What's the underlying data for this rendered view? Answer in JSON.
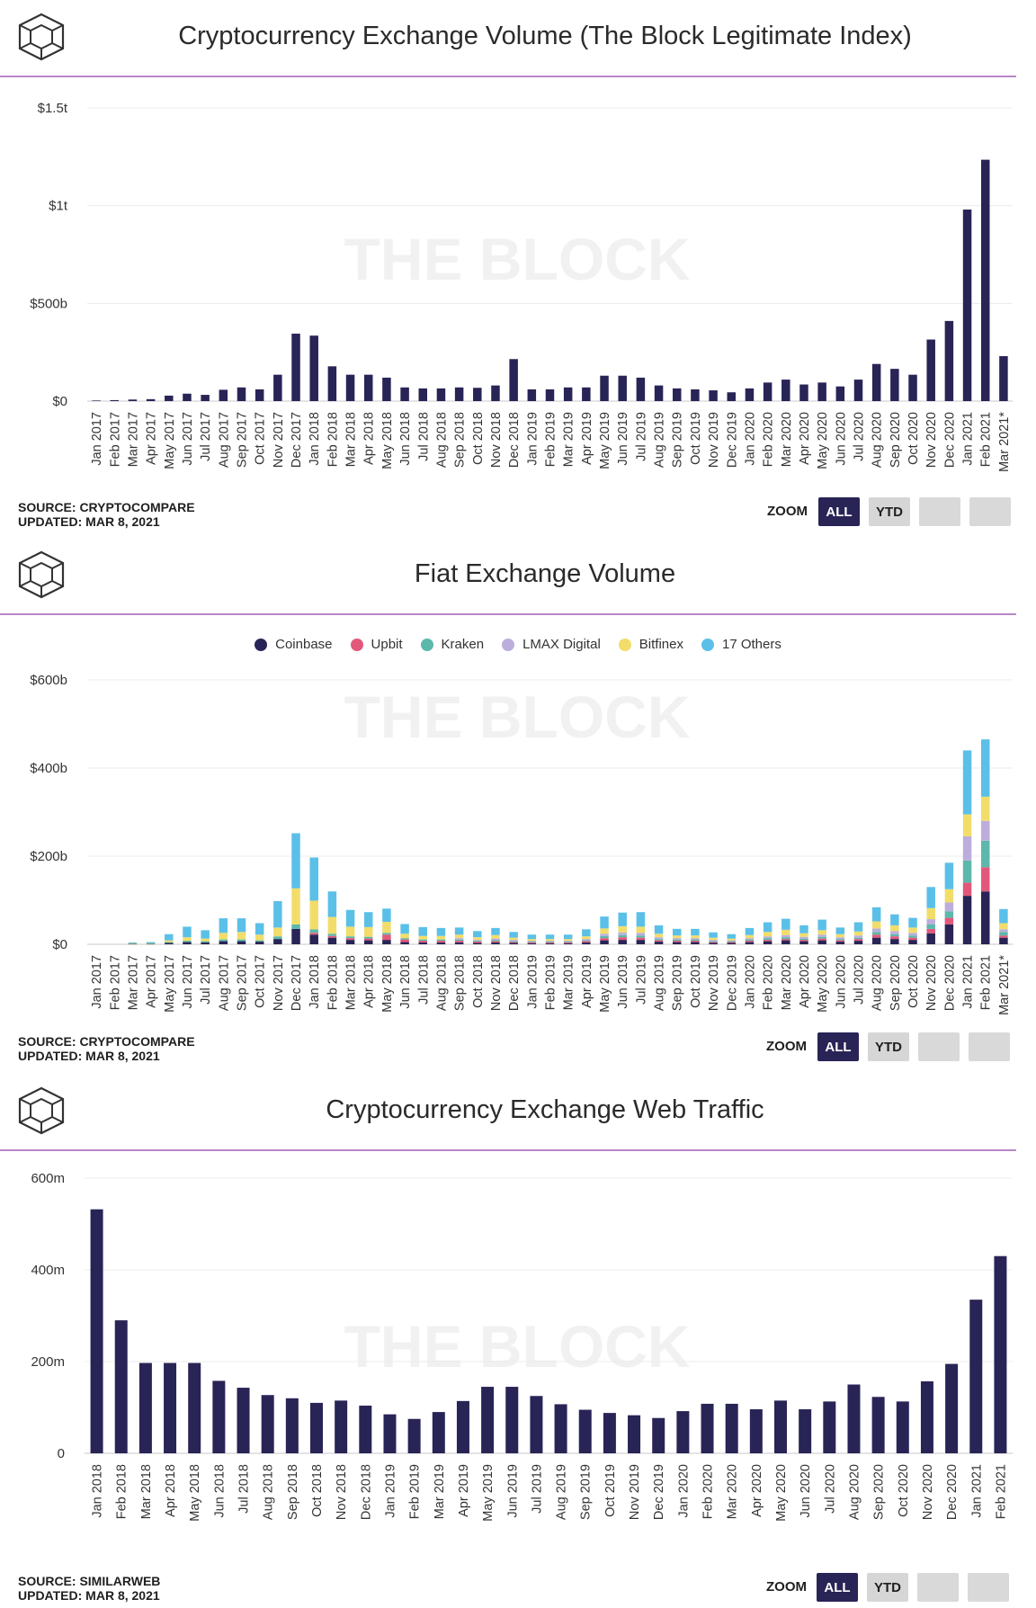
{
  "charts": [
    {
      "title": "Cryptocurrency Exchange Volume (The Block Legitimate Index)",
      "source": "SOURCE: CRYPTOCOMPARE",
      "updated": "UPDATED: MAR 8, 2021",
      "watermark": "THE BLOCK",
      "zoom_label": "ZOOM",
      "buttons": {
        "all": "ALL",
        "ytd": "YTD"
      }
    },
    {
      "title": "Fiat Exchange Volume",
      "source": "SOURCE: CRYPTOCOMPARE",
      "updated": "UPDATED: MAR 8, 2021",
      "watermark": "THE BLOCK",
      "zoom_label": "ZOOM",
      "buttons": {
        "all": "ALL",
        "ytd": "YTD"
      },
      "legend": [
        "Coinbase",
        "Upbit",
        "Kraken",
        "LMAX Digital",
        "Bitfinex",
        "17 Others"
      ]
    },
    {
      "title": "Cryptocurrency Exchange Web Traffic",
      "source": "SOURCE: SIMILARWEB",
      "updated": "UPDATED: MAR 8, 2021",
      "watermark": "THE BLOCK",
      "zoom_label": "ZOOM",
      "buttons": {
        "all": "ALL",
        "ytd": "YTD"
      }
    }
  ],
  "chart_data": [
    {
      "type": "bar",
      "title": "Cryptocurrency Exchange Volume (The Block Legitimate Index)",
      "color": "#292456",
      "y_ticks": [
        "$0",
        "$500b",
        "$1t",
        "$1.5t"
      ],
      "y_tick_values": [
        0,
        500,
        1000,
        1500
      ],
      "ylim": [
        0,
        1500
      ],
      "unit": "billions USD",
      "categories": [
        "Jan 2017",
        "Feb 2017",
        "Mar 2017",
        "Apr 2017",
        "May 2017",
        "Jun 2017",
        "Jul 2017",
        "Aug 2017",
        "Sep 2017",
        "Oct 2017",
        "Nov 2017",
        "Dec 2017",
        "Jan 2018",
        "Feb 2018",
        "Mar 2018",
        "Apr 2018",
        "May 2018",
        "Jun 2018",
        "Jul 2018",
        "Aug 2018",
        "Sep 2018",
        "Oct 2018",
        "Nov 2018",
        "Dec 2018",
        "Jan 2019",
        "Feb 2019",
        "Mar 2019",
        "Apr 2019",
        "May 2019",
        "Jun 2019",
        "Jul 2019",
        "Aug 2019",
        "Sep 2019",
        "Oct 2019",
        "Nov 2019",
        "Dec 2019",
        "Jan 2020",
        "Feb 2020",
        "Mar 2020",
        "Apr 2020",
        "May 2020",
        "Jun 2020",
        "Jul 2020",
        "Aug 2020",
        "Sep 2020",
        "Oct 2020",
        "Nov 2020",
        "Dec 2020",
        "Jan 2021",
        "Feb 2021",
        "Mar 2021*"
      ],
      "values": [
        3,
        5,
        8,
        10,
        28,
        38,
        32,
        58,
        70,
        60,
        135,
        345,
        335,
        178,
        135,
        135,
        120,
        70,
        65,
        65,
        70,
        68,
        80,
        215,
        60,
        60,
        70,
        70,
        130,
        130,
        120,
        80,
        65,
        60,
        55,
        45,
        65,
        95,
        110,
        85,
        95,
        75,
        110,
        190,
        165,
        135,
        315,
        410,
        980,
        1235,
        230
      ],
      "grid": true
    },
    {
      "type": "bar",
      "stacked": true,
      "title": "Fiat Exchange Volume",
      "y_ticks": [
        "$0",
        "$200b",
        "$400b",
        "$600b"
      ],
      "y_tick_values": [
        0,
        200,
        400,
        600
      ],
      "ylim": [
        0,
        600
      ],
      "unit": "billions USD",
      "legend_position": "top-center",
      "categories": [
        "Jan 2017",
        "Feb 2017",
        "Mar 2017",
        "Apr 2017",
        "May 2017",
        "Jun 2017",
        "Jul 2017",
        "Aug 2017",
        "Sep 2017",
        "Oct 2017",
        "Nov 2017",
        "Dec 2017",
        "Jan 2018",
        "Feb 2018",
        "Mar 2018",
        "Apr 2018",
        "May 2018",
        "Jun 2018",
        "Jul 2018",
        "Aug 2018",
        "Sep 2018",
        "Oct 2018",
        "Nov 2018",
        "Dec 2018",
        "Jan 2019",
        "Feb 2019",
        "Mar 2019",
        "Apr 2019",
        "May 2019",
        "Jun 2019",
        "Jul 2019",
        "Aug 2019",
        "Sep 2019",
        "Oct 2019",
        "Nov 2019",
        "Dec 2019",
        "Jan 2020",
        "Feb 2020",
        "Mar 2020",
        "Apr 2020",
        "May 2020",
        "Jun 2020",
        "Jul 2020",
        "Aug 2020",
        "Sep 2020",
        "Oct 2020",
        "Nov 2020",
        "Dec 2020",
        "Jan 2021",
        "Feb 2021",
        "Mar 2021*"
      ],
      "series": [
        {
          "name": "Coinbase",
          "color": "#292456",
          "values": [
            0,
            0,
            1,
            1,
            3,
            5,
            4,
            7,
            7,
            6,
            12,
            35,
            22,
            15,
            10,
            9,
            10,
            5,
            4,
            4,
            4,
            3,
            4,
            3,
            2,
            2,
            2,
            4,
            9,
            10,
            10,
            6,
            5,
            5,
            3,
            3,
            5,
            7,
            9,
            7,
            9,
            6,
            8,
            15,
            12,
            10,
            25,
            45,
            110,
            120,
            15
          ]
        },
        {
          "name": "Upbit",
          "color": "#e2587a",
          "values": [
            0,
            0,
            0,
            0,
            0,
            0,
            0,
            0,
            0,
            0,
            0,
            0,
            4,
            4,
            4,
            4,
            12,
            6,
            4,
            4,
            4,
            3,
            3,
            2,
            2,
            2,
            2,
            3,
            5,
            6,
            5,
            3,
            3,
            3,
            2,
            2,
            3,
            3,
            3,
            3,
            4,
            3,
            4,
            7,
            6,
            5,
            10,
            15,
            30,
            55,
            5
          ]
        },
        {
          "name": "Kraken",
          "color": "#5cb8aa",
          "values": [
            0,
            0,
            0,
            0,
            2,
            3,
            3,
            4,
            4,
            3,
            6,
            10,
            8,
            5,
            4,
            4,
            4,
            3,
            3,
            3,
            3,
            2,
            3,
            2,
            2,
            2,
            2,
            2,
            5,
            5,
            5,
            3,
            3,
            3,
            2,
            2,
            3,
            4,
            4,
            3,
            4,
            3,
            3,
            6,
            5,
            5,
            10,
            15,
            50,
            60,
            8
          ]
        },
        {
          "name": "LMAX Digital",
          "color": "#bbaedc",
          "values": [
            0,
            0,
            0,
            0,
            0,
            0,
            0,
            0,
            0,
            0,
            0,
            0,
            0,
            0,
            0,
            0,
            0,
            0,
            0,
            0,
            3,
            2,
            3,
            3,
            2,
            2,
            2,
            3,
            5,
            6,
            6,
            4,
            3,
            3,
            3,
            2,
            3,
            4,
            5,
            4,
            5,
            4,
            5,
            8,
            7,
            6,
            12,
            20,
            55,
            45,
            6
          ]
        },
        {
          "name": "Bitfinex",
          "color": "#f2dd6b",
          "values": [
            0,
            0,
            1,
            1,
            4,
            8,
            6,
            15,
            17,
            13,
            20,
            82,
            65,
            38,
            22,
            22,
            25,
            10,
            8,
            8,
            8,
            6,
            8,
            5,
            4,
            4,
            4,
            6,
            12,
            14,
            14,
            8,
            6,
            6,
            5,
            4,
            7,
            10,
            12,
            8,
            10,
            7,
            9,
            16,
            13,
            12,
            25,
            30,
            50,
            55,
            14
          ]
        },
        {
          "name": "17 Others",
          "color": "#5bc0e8",
          "values": [
            0,
            0,
            2,
            3,
            14,
            24,
            19,
            33,
            31,
            26,
            60,
            125,
            98,
            58,
            38,
            34,
            30,
            22,
            20,
            18,
            16,
            14,
            16,
            13,
            10,
            10,
            10,
            16,
            27,
            31,
            33,
            19,
            15,
            15,
            12,
            10,
            16,
            22,
            25,
            18,
            24,
            15,
            21,
            32,
            25,
            22,
            48,
            60,
            145,
            130,
            32
          ]
        }
      ],
      "grid": true
    },
    {
      "type": "bar",
      "title": "Cryptocurrency Exchange Web Traffic",
      "color": "#292456",
      "y_ticks": [
        "0",
        "200m",
        "400m",
        "600m"
      ],
      "y_tick_values": [
        0,
        200,
        400,
        600
      ],
      "ylim": [
        0,
        600
      ],
      "unit": "millions visits",
      "categories": [
        "Jan 2018",
        "Feb 2018",
        "Mar 2018",
        "Apr 2018",
        "May 2018",
        "Jun 2018",
        "Jul 2018",
        "Aug 2018",
        "Sep 2018",
        "Oct 2018",
        "Nov 2018",
        "Dec 2018",
        "Jan 2019",
        "Feb 2019",
        "Mar 2019",
        "Apr 2019",
        "May 2019",
        "Jun 2019",
        "Jul 2019",
        "Aug 2019",
        "Sep 2019",
        "Oct 2019",
        "Nov 2019",
        "Dec 2019",
        "Jan 2020",
        "Feb 2020",
        "Mar 2020",
        "Apr 2020",
        "May 2020",
        "Jun 2020",
        "Jul 2020",
        "Aug 2020",
        "Sep 2020",
        "Oct 2020",
        "Nov 2020",
        "Dec 2020",
        "Jan 2021",
        "Feb 2021"
      ],
      "values": [
        532,
        290,
        197,
        197,
        197,
        158,
        143,
        127,
        120,
        110,
        115,
        104,
        85,
        75,
        90,
        114,
        145,
        145,
        125,
        107,
        95,
        88,
        83,
        77,
        92,
        108,
        108,
        96,
        115,
        96,
        113,
        150,
        123,
        113,
        157,
        195,
        335,
        430
      ],
      "grid": true
    }
  ]
}
